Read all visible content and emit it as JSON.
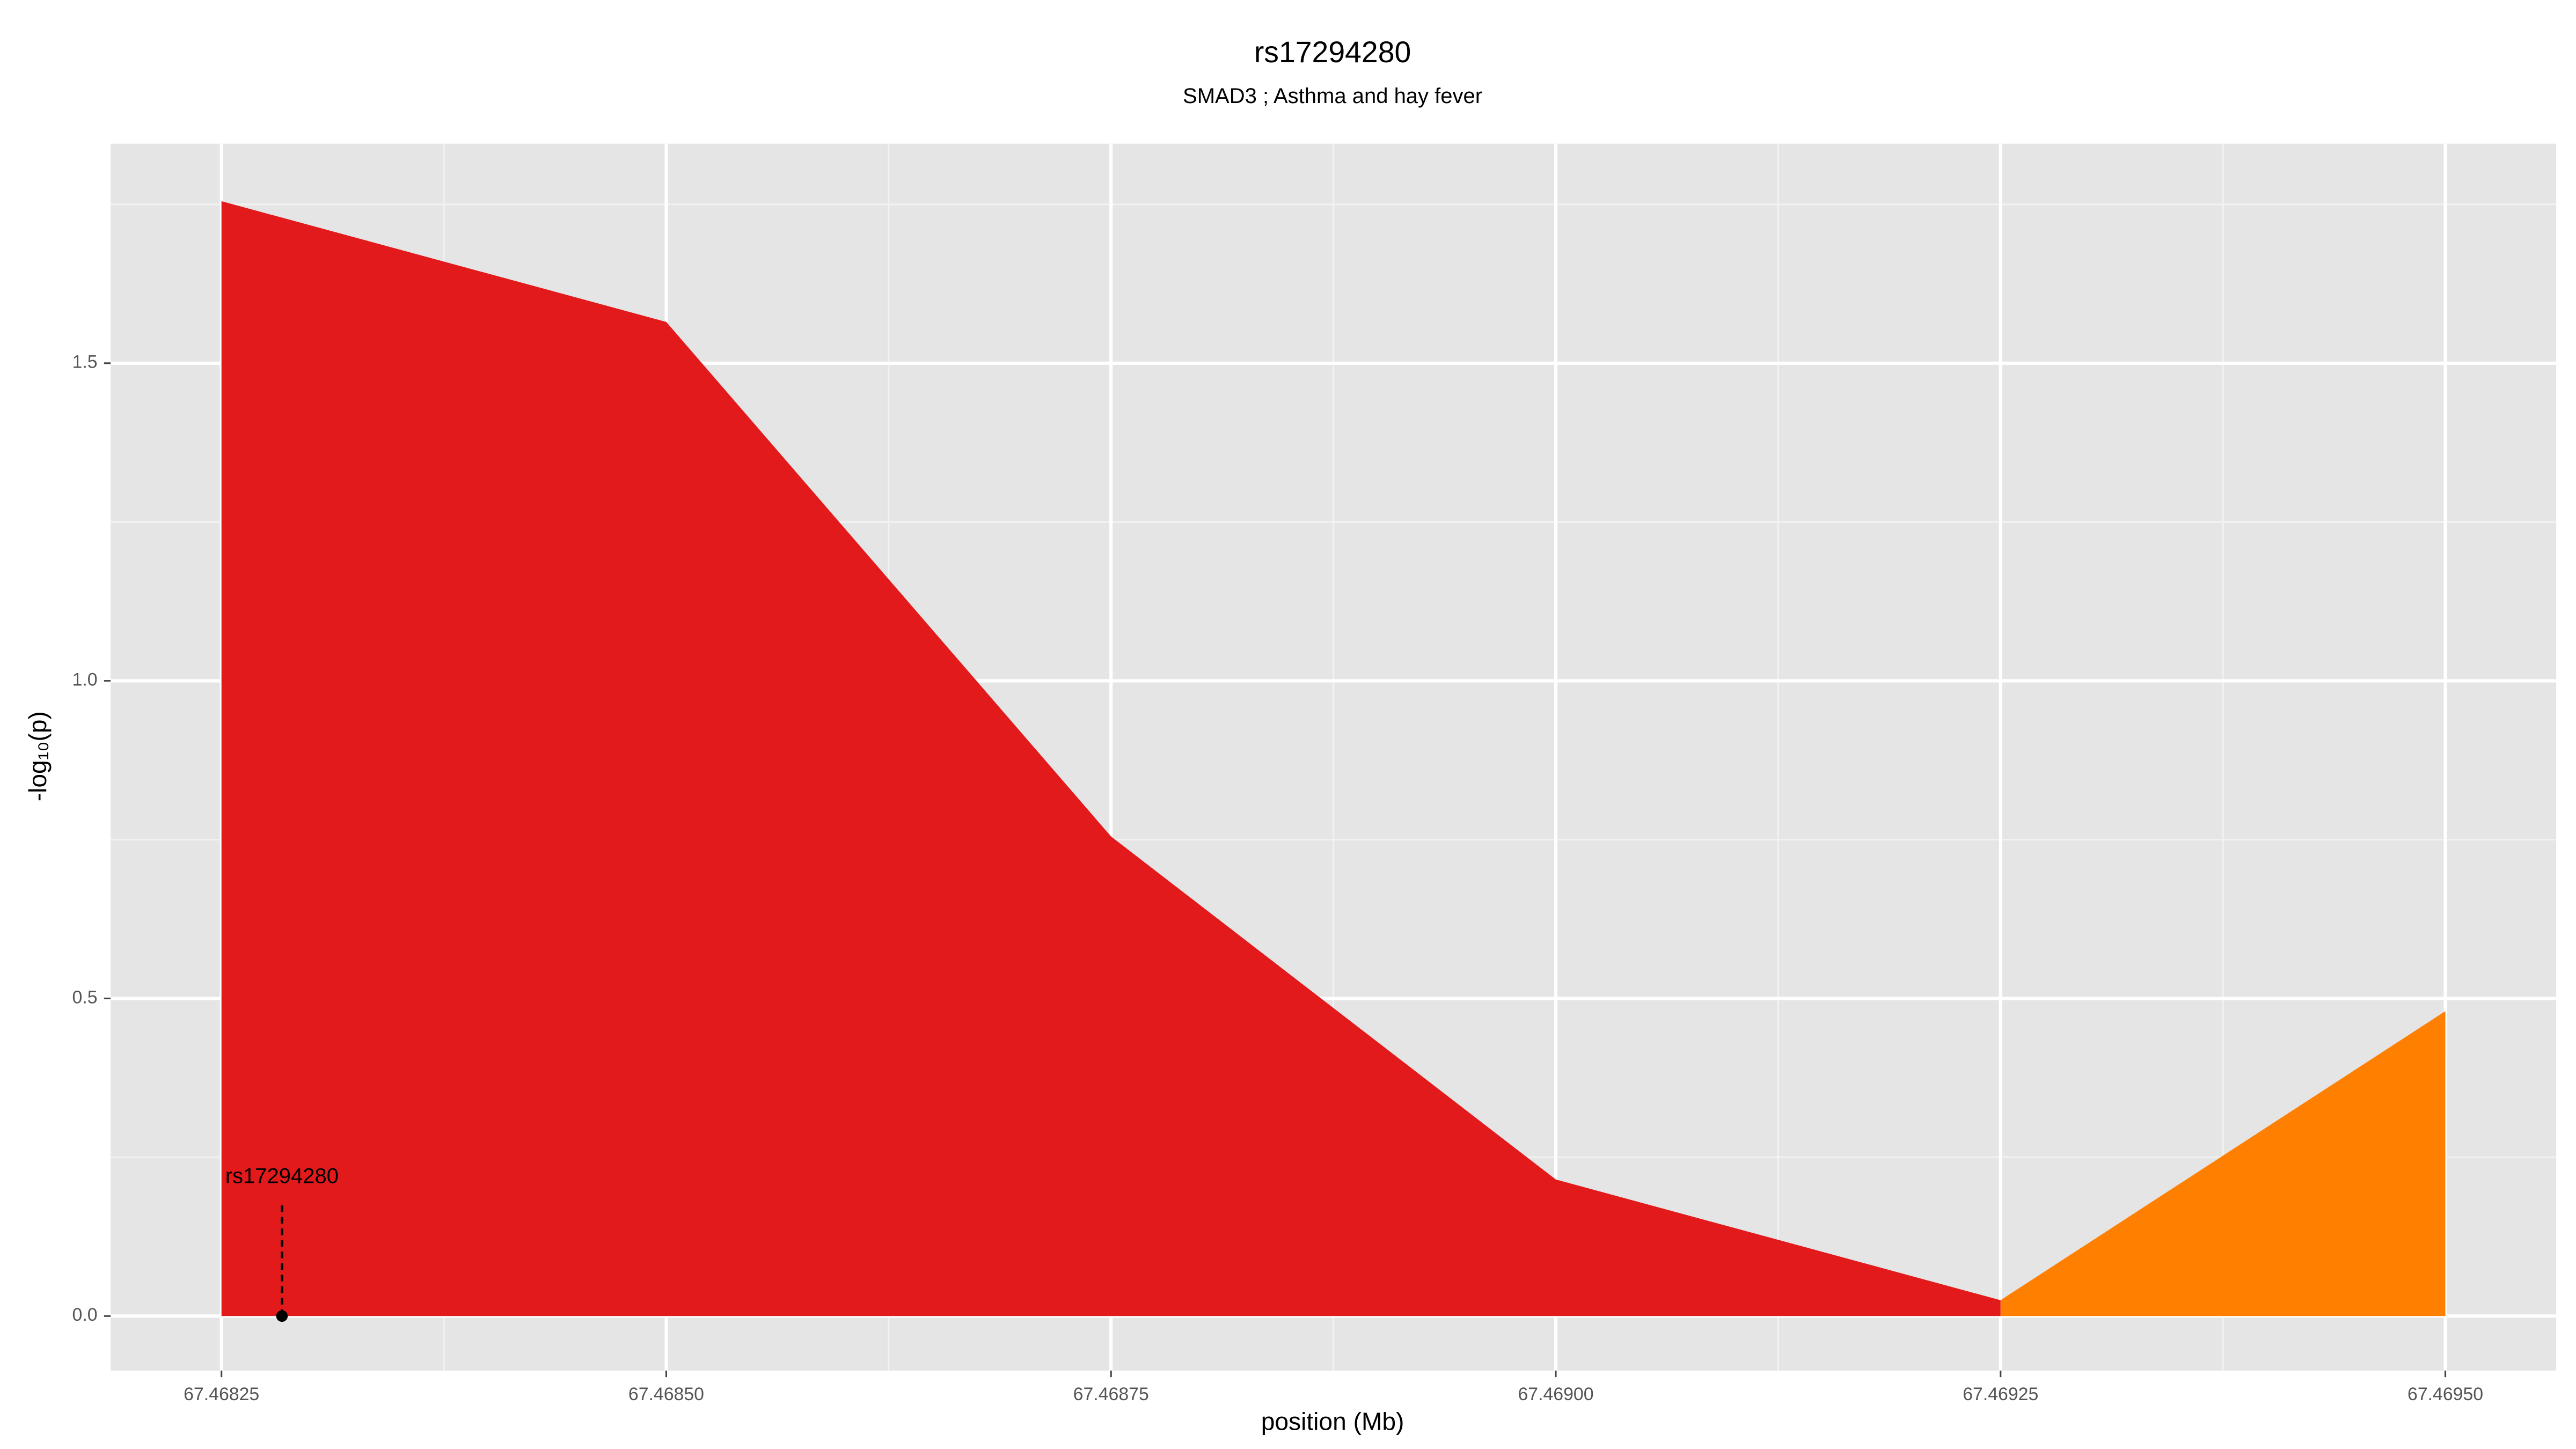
{
  "chart_data": {
    "type": "area",
    "title": "rs17294280",
    "subtitle": "SMAD3  ; Asthma and hay fever",
    "x_label": "position (Mb)",
    "y_label": "-log₁₀(p)",
    "x": [
      67.46825,
      67.4685,
      67.46875,
      67.469,
      67.46925,
      67.4695
    ],
    "series": [
      {
        "color": "#e31a1c",
        "values": [
          1.755,
          1.565,
          0.755,
          0.215,
          0.025,
          null
        ]
      },
      {
        "color": "#ff7f00",
        "values": [
          null,
          null,
          null,
          null,
          0.025,
          0.48
        ]
      }
    ],
    "annotation": {
      "text": "rs17294280",
      "x": 67.468284,
      "y": 0
    },
    "xlim": [
      67.4681877,
      67.4695623
    ],
    "ylim": [
      -0.0858,
      1.8456
    ],
    "xticks": [
      67.46825,
      {
        "value": 67.4685,
        "label": "67.46850"
      },
      67.46875,
      {
        "value": 67.469,
        "label": "67.46900"
      },
      67.46925,
      {
        "value": 67.4695,
        "label": "67.46950"
      }
    ],
    "yticks": [
      {
        "value": 0,
        "label": "0.0"
      },
      0.5,
      {
        "value": 1,
        "label": "1.0"
      },
      1.5
    ],
    "grid": true
  }
}
